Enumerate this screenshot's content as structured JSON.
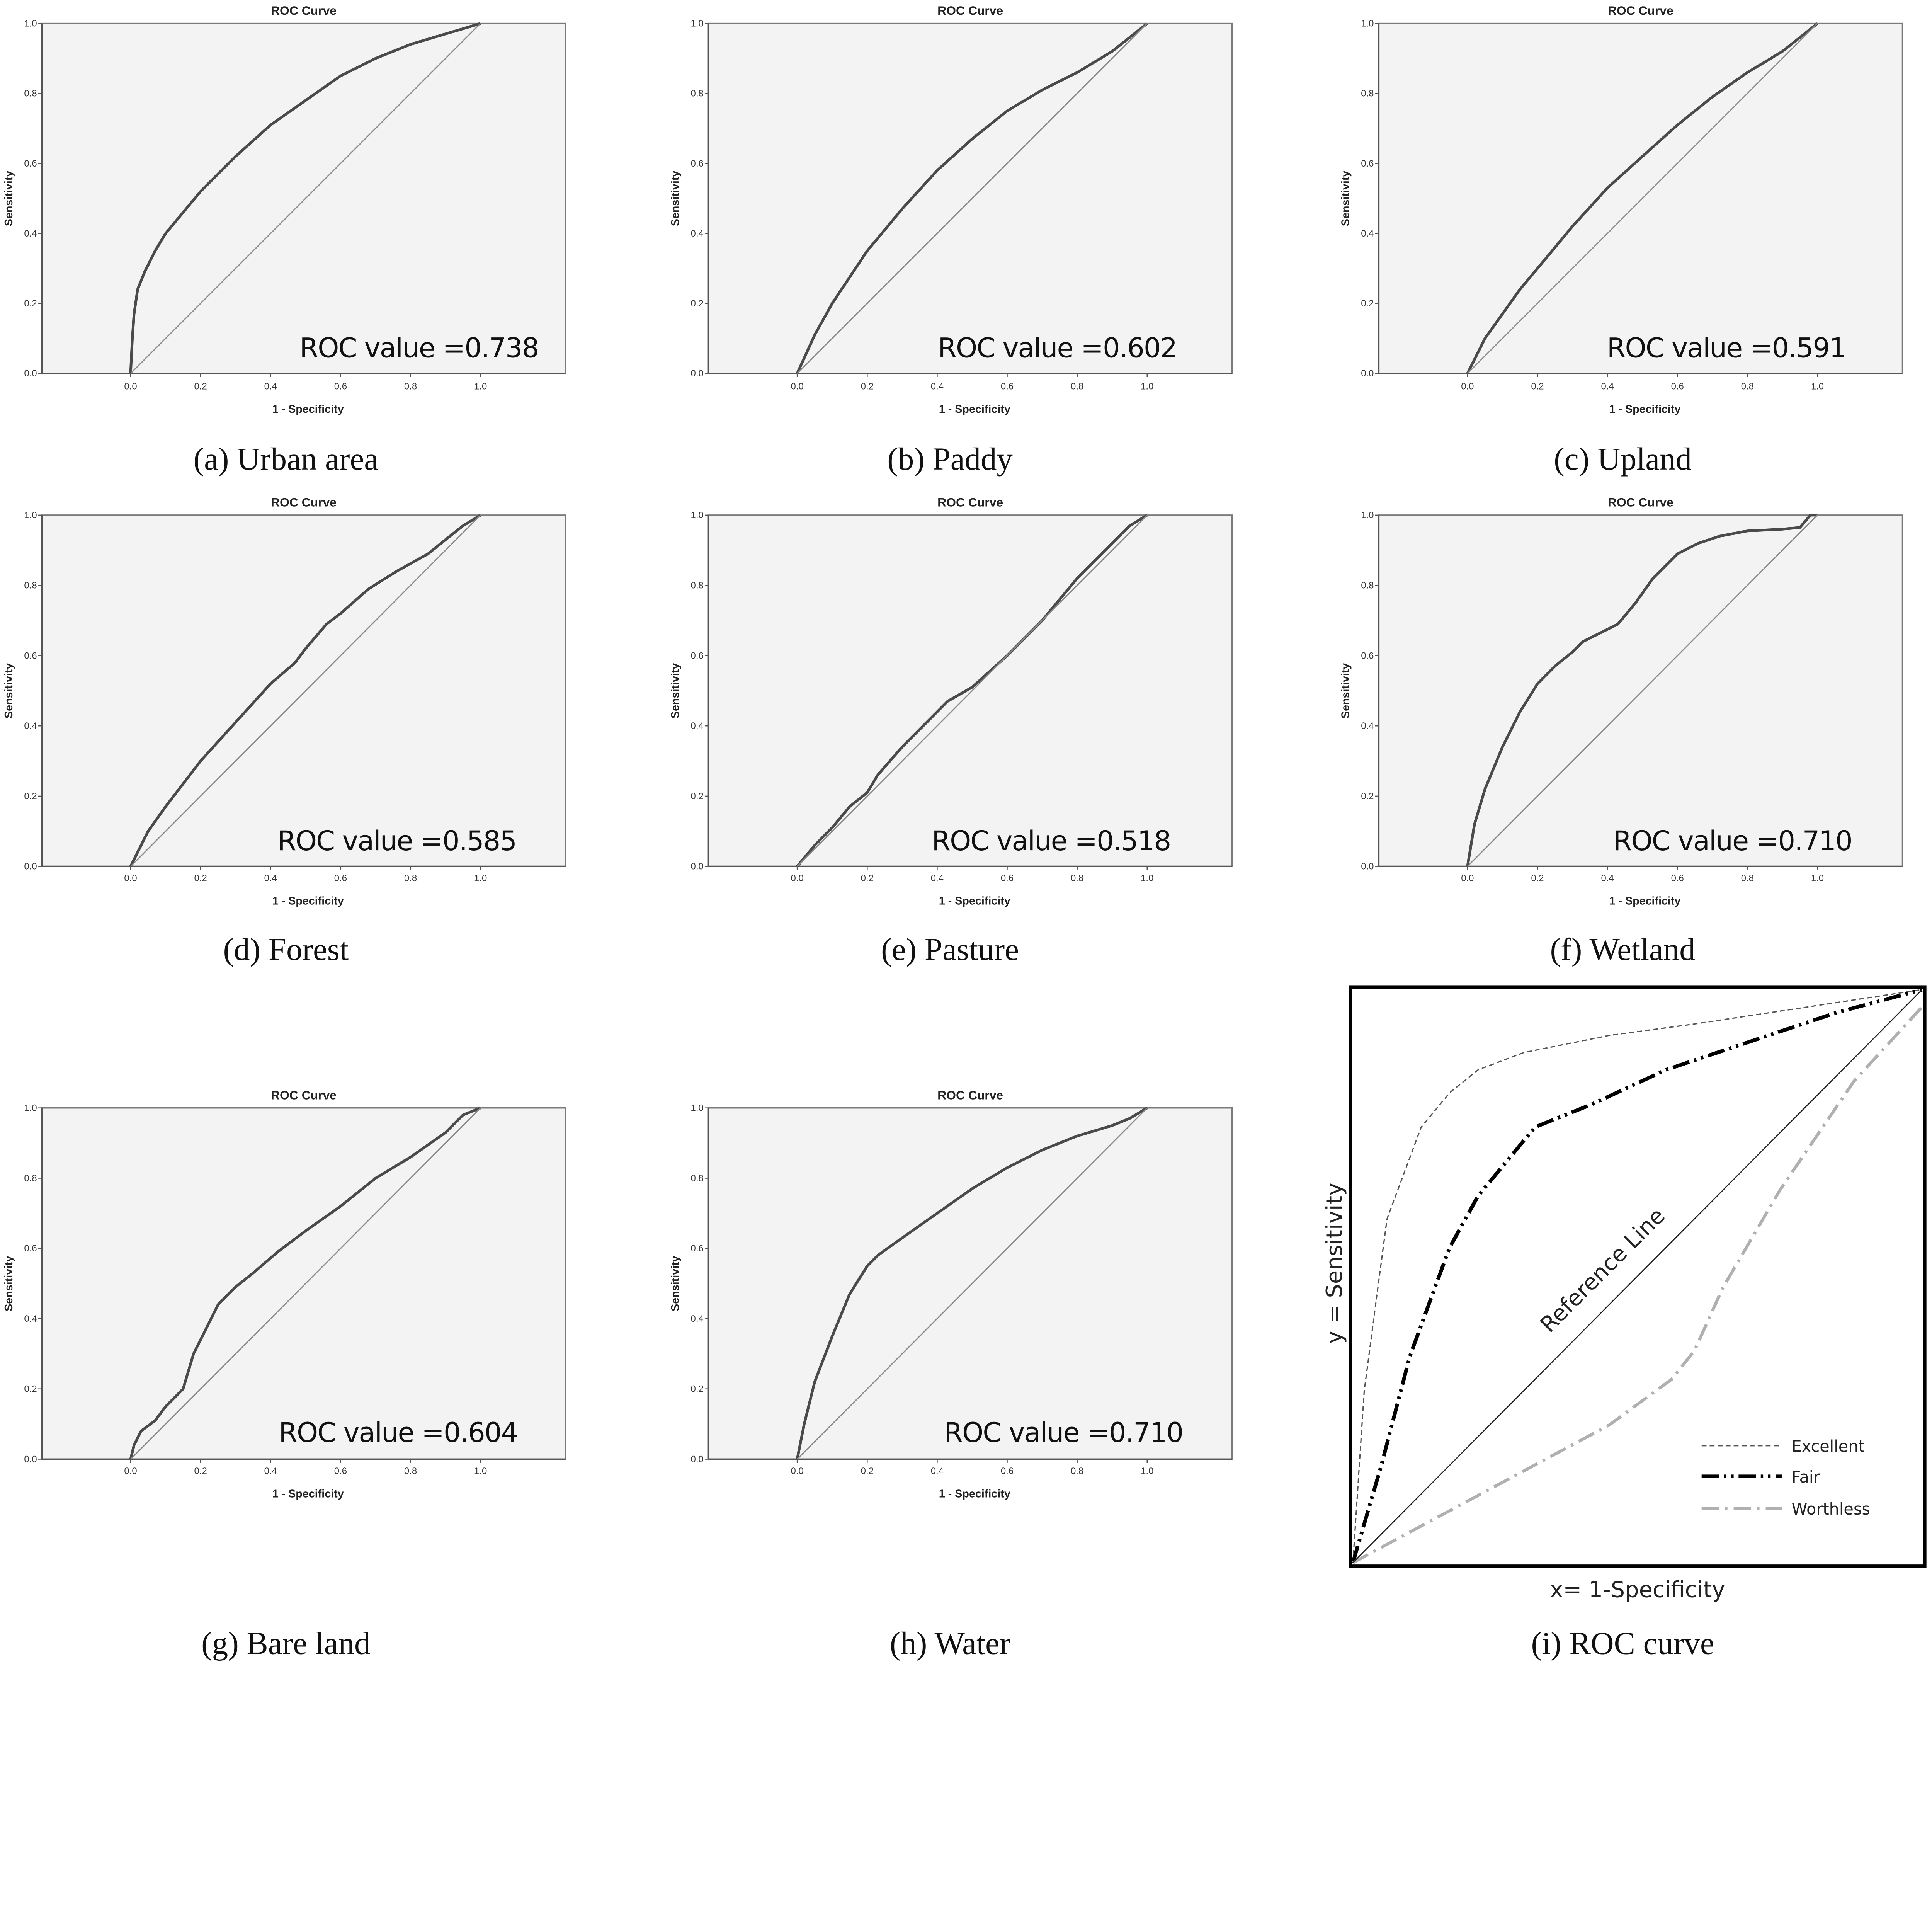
{
  "figure": {
    "caption_font": "serif",
    "colors": {
      "plot_background": "#f3f3f3",
      "roc_line": "#4a4a4a",
      "reference_line": "#8a8a8a",
      "excellent": "#555555",
      "fair": "#000000",
      "worthless": "#b0b0b0"
    }
  },
  "chart_data": [
    {
      "id": "a",
      "type": "line",
      "title": "ROC Curve",
      "xlabel": "1 - Specificity",
      "ylabel": "Sensitivity",
      "xticks": [
        "0.0",
        "0.2",
        "0.4",
        "0.6",
        "0.8",
        "1.0"
      ],
      "yticks": [
        "0.0",
        "0.2",
        "0.4",
        "0.6",
        "0.8",
        "1.0"
      ],
      "xlim": [
        0,
        1
      ],
      "ylim": [
        0,
        1
      ],
      "annotation": "ROC value =0.738",
      "auc": 0.738,
      "caption": "(a)  Urban  area",
      "series": [
        {
          "name": "ROC",
          "x": [
            0,
            0.005,
            0.01,
            0.02,
            0.04,
            0.07,
            0.1,
            0.15,
            0.2,
            0.3,
            0.4,
            0.5,
            0.6,
            0.7,
            0.8,
            0.9,
            0.95,
            1.0
          ],
          "y": [
            0,
            0.1,
            0.17,
            0.24,
            0.29,
            0.35,
            0.4,
            0.46,
            0.52,
            0.62,
            0.71,
            0.78,
            0.85,
            0.9,
            0.94,
            0.97,
            0.985,
            1.0
          ]
        },
        {
          "name": "Reference Line",
          "x": [
            0,
            1
          ],
          "y": [
            0,
            1
          ]
        }
      ]
    },
    {
      "id": "b",
      "type": "line",
      "title": "ROC Curve",
      "xlabel": "1 - Specificity",
      "ylabel": "Sensitivity",
      "xticks": [
        "0.0",
        "0.2",
        "0.4",
        "0.6",
        "0.8",
        "1.0"
      ],
      "yticks": [
        "0.0",
        "0.2",
        "0.4",
        "0.6",
        "0.8",
        "1.0"
      ],
      "xlim": [
        0,
        1
      ],
      "ylim": [
        0,
        1
      ],
      "annotation": "ROC value =0.602",
      "auc": 0.602,
      "caption": "(b)  Paddy",
      "series": [
        {
          "name": "ROC",
          "x": [
            0,
            0.05,
            0.1,
            0.2,
            0.3,
            0.4,
            0.5,
            0.6,
            0.7,
            0.8,
            0.9,
            0.95,
            1.0
          ],
          "y": [
            0,
            0.11,
            0.2,
            0.35,
            0.47,
            0.58,
            0.67,
            0.75,
            0.81,
            0.86,
            0.92,
            0.96,
            1.0
          ]
        },
        {
          "name": "Reference Line",
          "x": [
            0,
            1
          ],
          "y": [
            0,
            1
          ]
        }
      ]
    },
    {
      "id": "c",
      "type": "line",
      "title": "ROC Curve",
      "xlabel": "1 - Specificity",
      "ylabel": "Sensitivity",
      "xticks": [
        "0.0",
        "0.2",
        "0.4",
        "0.6",
        "0.8",
        "1.0"
      ],
      "yticks": [
        "0.0",
        "0.2",
        "0.4",
        "0.6",
        "0.8",
        "1.0"
      ],
      "xlim": [
        0,
        1
      ],
      "ylim": [
        0,
        1
      ],
      "annotation": "ROC value =0.591",
      "auc": 0.591,
      "caption": "(c)  Upland",
      "series": [
        {
          "name": "ROC",
          "x": [
            0,
            0.05,
            0.1,
            0.15,
            0.2,
            0.3,
            0.4,
            0.5,
            0.6,
            0.7,
            0.8,
            0.9,
            0.95,
            1.0
          ],
          "y": [
            0,
            0.1,
            0.17,
            0.24,
            0.3,
            0.42,
            0.53,
            0.62,
            0.71,
            0.79,
            0.86,
            0.92,
            0.96,
            1.0
          ]
        },
        {
          "name": "Reference Line",
          "x": [
            0,
            1
          ],
          "y": [
            0,
            1
          ]
        }
      ]
    },
    {
      "id": "d",
      "type": "line",
      "title": "ROC Curve",
      "xlabel": "1 - Specificity",
      "ylabel": "Sensitivity",
      "xticks": [
        "0.0",
        "0.2",
        "0.4",
        "0.6",
        "0.8",
        "1.0"
      ],
      "yticks": [
        "0.0",
        "0.2",
        "0.4",
        "0.6",
        "0.8",
        "1.0"
      ],
      "xlim": [
        0,
        1
      ],
      "ylim": [
        0,
        1
      ],
      "annotation": "ROC value =0.585",
      "auc": 0.585,
      "caption": "(d)  Forest",
      "series": [
        {
          "name": "ROC",
          "x": [
            0,
            0.05,
            0.1,
            0.2,
            0.3,
            0.4,
            0.47,
            0.5,
            0.56,
            0.6,
            0.68,
            0.76,
            0.85,
            0.9,
            0.95,
            1.0
          ],
          "y": [
            0,
            0.1,
            0.17,
            0.3,
            0.41,
            0.52,
            0.58,
            0.62,
            0.69,
            0.72,
            0.79,
            0.84,
            0.89,
            0.93,
            0.97,
            1.0
          ]
        },
        {
          "name": "Reference Line",
          "x": [
            0,
            1
          ],
          "y": [
            0,
            1
          ]
        }
      ]
    },
    {
      "id": "e",
      "type": "line",
      "title": "ROC Curve",
      "xlabel": "1 - Specificity",
      "ylabel": "Sensitivity",
      "xticks": [
        "0.0",
        "0.2",
        "0.4",
        "0.6",
        "0.8",
        "1.0"
      ],
      "yticks": [
        "0.0",
        "0.2",
        "0.4",
        "0.6",
        "0.8",
        "1.0"
      ],
      "xlim": [
        0,
        1
      ],
      "ylim": [
        0,
        1
      ],
      "annotation": "ROC value =0.518",
      "auc": 0.518,
      "caption": "(e)  Pasture",
      "series": [
        {
          "name": "ROC",
          "x": [
            0,
            0.05,
            0.1,
            0.15,
            0.2,
            0.23,
            0.3,
            0.4,
            0.43,
            0.5,
            0.6,
            0.7,
            0.8,
            0.9,
            0.95,
            1.0
          ],
          "y": [
            0,
            0.06,
            0.11,
            0.17,
            0.21,
            0.26,
            0.34,
            0.44,
            0.47,
            0.51,
            0.6,
            0.7,
            0.82,
            0.92,
            0.97,
            1.0
          ]
        },
        {
          "name": "Reference Line",
          "x": [
            0,
            1
          ],
          "y": [
            0,
            1
          ]
        }
      ]
    },
    {
      "id": "f",
      "type": "line",
      "title": "ROC Curve",
      "xlabel": "1 - Specificity",
      "ylabel": "Sensitivity",
      "xticks": [
        "0.0",
        "0.2",
        "0.4",
        "0.6",
        "0.8",
        "1.0"
      ],
      "yticks": [
        "0.0",
        "0.2",
        "0.4",
        "0.6",
        "0.8",
        "1.0"
      ],
      "xlim": [
        0,
        1
      ],
      "ylim": [
        0,
        1
      ],
      "annotation": "ROC value =0.710",
      "auc": 0.71,
      "caption": "(f)  Wetland",
      "series": [
        {
          "name": "ROC",
          "x": [
            0,
            0.02,
            0.05,
            0.1,
            0.15,
            0.2,
            0.25,
            0.3,
            0.33,
            0.37,
            0.43,
            0.48,
            0.53,
            0.6,
            0.66,
            0.72,
            0.8,
            0.9,
            0.95,
            0.98,
            1.0
          ],
          "y": [
            0,
            0.12,
            0.22,
            0.34,
            0.44,
            0.52,
            0.57,
            0.61,
            0.64,
            0.66,
            0.69,
            0.75,
            0.82,
            0.89,
            0.92,
            0.94,
            0.955,
            0.96,
            0.965,
            1.0,
            1.0
          ]
        },
        {
          "name": "Reference Line",
          "x": [
            0,
            1
          ],
          "y": [
            0,
            1
          ]
        }
      ]
    },
    {
      "id": "g",
      "type": "line",
      "title": "ROC Curve",
      "xlabel": "1 - Specificity",
      "ylabel": "Sensitivity",
      "xticks": [
        "0.0",
        "0.2",
        "0.4",
        "0.6",
        "0.8",
        "1.0"
      ],
      "yticks": [
        "0.0",
        "0.2",
        "0.4",
        "0.6",
        "0.8",
        "1.0"
      ],
      "xlim": [
        0,
        1
      ],
      "ylim": [
        0,
        1
      ],
      "annotation": "ROC value =0.604",
      "auc": 0.604,
      "caption": "(g)  Bare  land",
      "series": [
        {
          "name": "ROC",
          "x": [
            0,
            0.01,
            0.03,
            0.07,
            0.1,
            0.15,
            0.18,
            0.22,
            0.25,
            0.3,
            0.35,
            0.42,
            0.5,
            0.6,
            0.7,
            0.8,
            0.9,
            0.95,
            1.0
          ],
          "y": [
            0,
            0.04,
            0.08,
            0.11,
            0.15,
            0.2,
            0.3,
            0.38,
            0.44,
            0.49,
            0.53,
            0.59,
            0.65,
            0.72,
            0.8,
            0.86,
            0.93,
            0.98,
            1.0
          ]
        },
        {
          "name": "Reference Line",
          "x": [
            0,
            1
          ],
          "y": [
            0,
            1
          ]
        }
      ]
    },
    {
      "id": "h",
      "type": "line",
      "title": "ROC Curve",
      "xlabel": "1 - Specificity",
      "ylabel": "Sensitivity",
      "xticks": [
        "0.0",
        "0.2",
        "0.4",
        "0.6",
        "0.8",
        "1.0"
      ],
      "yticks": [
        "0.0",
        "0.2",
        "0.4",
        "0.6",
        "0.8",
        "1.0"
      ],
      "xlim": [
        0,
        1
      ],
      "ylim": [
        0,
        1
      ],
      "annotation": "ROC value =0.710",
      "auc": 0.71,
      "caption": "(h)  Water",
      "series": [
        {
          "name": "ROC",
          "x": [
            0,
            0.02,
            0.05,
            0.1,
            0.15,
            0.2,
            0.23,
            0.3,
            0.4,
            0.5,
            0.6,
            0.7,
            0.8,
            0.9,
            0.95,
            1.0
          ],
          "y": [
            0,
            0.1,
            0.22,
            0.35,
            0.47,
            0.55,
            0.58,
            0.63,
            0.7,
            0.77,
            0.83,
            0.88,
            0.92,
            0.95,
            0.97,
            1.0
          ]
        },
        {
          "name": "Reference Line",
          "x": [
            0,
            1
          ],
          "y": [
            0,
            1
          ]
        }
      ]
    },
    {
      "id": "i",
      "type": "line",
      "title": "",
      "xlabel": "x= 1-Specificity",
      "ylabel": "y =  Sensitivity",
      "xlim": [
        0,
        1
      ],
      "ylim": [
        0,
        1
      ],
      "reference_label": "Reference Line",
      "caption": "(i)  ROC  curve",
      "legend": {
        "position": "bottom-right",
        "entries": [
          "Excellent",
          "Fair",
          "Worthless"
        ]
      },
      "series": [
        {
          "name": "Excellent",
          "style": "dashed",
          "color": "#555555",
          "x": [
            0,
            0.02,
            0.06,
            0.12,
            0.17,
            0.22,
            0.3,
            0.45,
            0.6,
            0.8,
            1.0
          ],
          "y": [
            0,
            0.3,
            0.6,
            0.76,
            0.82,
            0.86,
            0.89,
            0.92,
            0.94,
            0.97,
            1.0
          ]
        },
        {
          "name": "Fair",
          "style": "dash-dot-dot",
          "color": "#000000",
          "x": [
            0,
            0.05,
            0.1,
            0.17,
            0.22,
            0.27,
            0.32,
            0.42,
            0.55,
            0.7,
            0.85,
            1.0
          ],
          "y": [
            0,
            0.17,
            0.36,
            0.55,
            0.64,
            0.7,
            0.76,
            0.8,
            0.86,
            0.91,
            0.96,
            1.0
          ]
        },
        {
          "name": "Worthless",
          "style": "dash-dot",
          "color": "#b0b0b0",
          "x": [
            0,
            0.15,
            0.3,
            0.45,
            0.56,
            0.6,
            0.65,
            0.75,
            0.88,
            1.0
          ],
          "y": [
            0,
            0.08,
            0.16,
            0.24,
            0.32,
            0.37,
            0.48,
            0.65,
            0.84,
            0.97
          ]
        },
        {
          "name": "Reference Line",
          "style": "solid",
          "color": "#000000",
          "x": [
            0,
            1
          ],
          "y": [
            0,
            1
          ]
        }
      ]
    }
  ]
}
